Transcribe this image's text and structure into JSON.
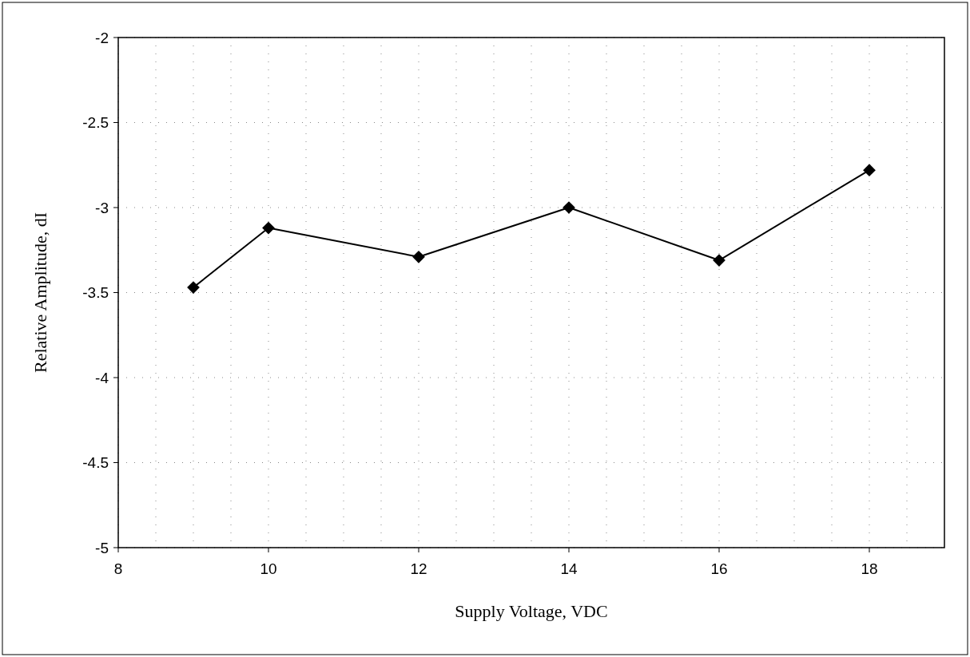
{
  "chart_data": {
    "type": "line",
    "xlabel": "Supply Voltage, VDC",
    "ylabel": "Relative Amplitude, dI",
    "x": [
      9,
      10,
      12,
      14,
      16,
      18
    ],
    "series": [
      {
        "color": "#000000",
        "values": [
          -3.47,
          -3.12,
          -3.29,
          -3.0,
          -3.31,
          -2.78
        ]
      }
    ],
    "xlim": [
      8,
      19
    ],
    "xticks": [
      8,
      {
        "value": 8.5,
        "label": null
      },
      {
        "value": 9,
        "label": null
      },
      {
        "value": 9.5,
        "label": null
      },
      10,
      {
        "value": 10.5,
        "label": null
      },
      {
        "value": 11,
        "label": null
      },
      {
        "value": 11.5,
        "label": null
      },
      12,
      {
        "value": 12.5,
        "label": null
      },
      {
        "value": 13,
        "label": null
      },
      {
        "value": 13.5,
        "label": null
      },
      14,
      {
        "value": 14.5,
        "label": null
      },
      {
        "value": 15,
        "label": null
      },
      {
        "value": 15.5,
        "label": null
      },
      16,
      {
        "value": 16.5,
        "label": null
      },
      {
        "value": 17,
        "label": null
      },
      {
        "value": 17.5,
        "label": null
      },
      18,
      {
        "value": 18.5,
        "label": null
      }
    ],
    "ylim": [
      -5,
      -2
    ],
    "yticks": [
      -5,
      -4.5,
      -4,
      -3.5,
      -3,
      -2.5,
      -2
    ],
    "grid": true,
    "marker": "diamond",
    "line_style": "solid"
  }
}
